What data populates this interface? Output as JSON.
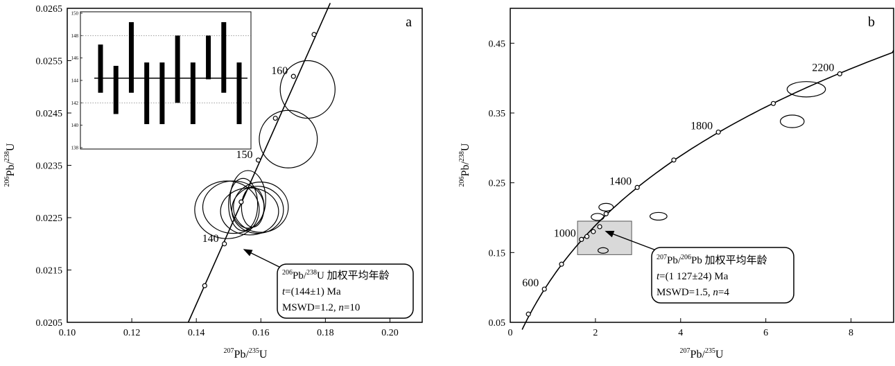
{
  "chart_data": [
    {
      "type": "scatter",
      "panel_label": "a",
      "xlabel_parts": [
        "207",
        "Pb/",
        "235",
        "U"
      ],
      "ylabel_parts": [
        "206",
        "Pb/",
        "238",
        "U"
      ],
      "xlim": [
        0.1,
        0.21
      ],
      "ylim": [
        0.0205,
        0.0265
      ],
      "xticks": [
        "0.10",
        "0.12",
        "0.14",
        "0.16",
        "0.18",
        "0.20"
      ],
      "xtick_values": [
        0.1,
        0.12,
        0.14,
        0.16,
        0.18,
        0.2
      ],
      "yticks": [
        "0.0205",
        "0.0215",
        "0.0225",
        "0.0235",
        "0.0245",
        "0.0255",
        "0.0265"
      ],
      "ytick_values": [
        0.0205,
        0.0215,
        0.0225,
        0.0235,
        0.0245,
        0.0255,
        0.0265
      ],
      "concordia_ticks": [
        {
          "x": 0.1426,
          "y": 0.0212
        },
        {
          "x": 0.1487,
          "y": 0.022,
          "label": "140"
        },
        {
          "x": 0.1539,
          "y": 0.0228
        },
        {
          "x": 0.1592,
          "y": 0.0236,
          "label": "150"
        },
        {
          "x": 0.1645,
          "y": 0.0244
        },
        {
          "x": 0.1701,
          "y": 0.0252,
          "label": "160"
        },
        {
          "x": 0.1765,
          "y": 0.026
        }
      ],
      "concordia_line": [
        [
          0.1375,
          0.0205
        ],
        [
          0.1815,
          0.0266
        ]
      ],
      "ellipses": [
        {
          "cx": 0.1495,
          "cy": 0.02265,
          "rx": 0.01,
          "ry": 0.00055,
          "angle": 0
        },
        {
          "cx": 0.1515,
          "cy": 0.0227,
          "rx": 0.0095,
          "ry": 0.0005,
          "angle": 0
        },
        {
          "cx": 0.1565,
          "cy": 0.02262,
          "rx": 0.009,
          "ry": 0.00045,
          "angle": 0
        },
        {
          "cx": 0.159,
          "cy": 0.02265,
          "rx": 0.008,
          "ry": 0.00045,
          "angle": 0
        },
        {
          "cx": 0.16,
          "cy": 0.0227,
          "rx": 0.0085,
          "ry": 0.00048,
          "angle": 0
        },
        {
          "cx": 0.156,
          "cy": 0.02285,
          "rx": 0.0055,
          "ry": 0.00055,
          "angle": 0
        },
        {
          "cx": 0.1545,
          "cy": 0.02275,
          "rx": 0.0045,
          "ry": 0.0005,
          "angle": 0
        },
        {
          "cx": 0.1575,
          "cy": 0.0227,
          "rx": 0.0035,
          "ry": 0.00038,
          "angle": 0
        },
        {
          "cx": 0.1685,
          "cy": 0.024,
          "rx": 0.009,
          "ry": 0.00055,
          "angle": 0
        },
        {
          "cx": 0.1745,
          "cy": 0.02495,
          "rx": 0.0085,
          "ry": 0.00055,
          "angle": 0
        }
      ],
      "arrow_target": {
        "x": 0.1545,
        "y": 0.0219
      },
      "inset": {
        "ylim": [
          138,
          150
        ],
        "yticks": [
          "138",
          "140",
          "142",
          "144",
          "146",
          "148",
          "150"
        ],
        "ytick_values": [
          138,
          140,
          142,
          144,
          146,
          148,
          150
        ],
        "dashed_lines": [
          142,
          148
        ],
        "mean": 144.2,
        "bars": [
          {
            "low": 142.9,
            "high": 147.2
          },
          {
            "low": 141.0,
            "high": 145.3
          },
          {
            "low": 142.9,
            "high": 149.2
          },
          {
            "low": 140.1,
            "high": 145.6
          },
          {
            "low": 140.1,
            "high": 145.6
          },
          {
            "low": 142.0,
            "high": 148.0
          },
          {
            "low": 140.1,
            "high": 145.6
          },
          {
            "low": 144.1,
            "high": 148.0
          },
          {
            "low": 142.9,
            "high": 149.2
          },
          {
            "low": 140.1,
            "high": 145.6
          }
        ]
      },
      "annotation": {
        "ratio_parts": [
          "206",
          "Pb/",
          "238",
          "U 加权平均年龄"
        ],
        "age_prefix": "t",
        "age_value": "=(144±1) Ma",
        "mswd_prefix": "MSWD=1.2, ",
        "n_symbol": "n",
        "n_value": "=10"
      }
    },
    {
      "type": "scatter",
      "panel_label": "b",
      "xlabel_parts": [
        "207",
        "Pb/",
        "235",
        "U"
      ],
      "ylabel_parts": [
        "206",
        "Pb/",
        "238",
        "U"
      ],
      "xlim": [
        0,
        9
      ],
      "ylim": [
        0.05,
        0.5
      ],
      "xticks": [
        "0",
        "2",
        "4",
        "6",
        "8"
      ],
      "xtick_values": [
        0,
        2,
        4,
        6,
        8
      ],
      "yticks": [
        "0.05",
        "0.15",
        "0.25",
        "0.35",
        "0.45"
      ],
      "ytick_values": [
        0.05,
        0.15,
        0.25,
        0.35,
        0.45
      ],
      "concordia_ticks": [
        {
          "x": 0.426,
          "y": 0.0618
        },
        {
          "x": 0.801,
          "y": 0.0976,
          "label": "600"
        },
        {
          "x": 1.204,
          "y": 0.1333
        },
        {
          "x": 1.672,
          "y": 0.1688,
          "label": "1000"
        },
        {
          "x": 2.25,
          "y": 0.2055
        },
        {
          "x": 2.981,
          "y": 0.2433,
          "label": "1400"
        },
        {
          "x": 3.84,
          "y": 0.2826
        },
        {
          "x": 4.885,
          "y": 0.3226,
          "label": "1800"
        },
        {
          "x": 6.176,
          "y": 0.3636
        },
        {
          "x": 7.736,
          "y": 0.4061,
          "label": "2200"
        }
      ],
      "concordia_extra_ticks": [
        {
          "x": 1.8,
          "y": 0.173
        },
        {
          "x": 1.95,
          "y": 0.18
        },
        {
          "x": 2.1,
          "y": 0.187
        }
      ],
      "ellipses": [
        {
          "cx": 2.25,
          "cy": 0.215,
          "rx": 0.17,
          "ry": 0.0055,
          "angle": 0
        },
        {
          "cx": 2.05,
          "cy": 0.201,
          "rx": 0.15,
          "ry": 0.005,
          "angle": 0
        },
        {
          "cx": 2.18,
          "cy": 0.153,
          "rx": 0.12,
          "ry": 0.004,
          "angle": 0
        },
        {
          "cx": 3.48,
          "cy": 0.202,
          "rx": 0.2,
          "ry": 0.0055,
          "angle": 0
        },
        {
          "cx": 6.62,
          "cy": 0.338,
          "rx": 0.28,
          "ry": 0.009,
          "angle": 0
        },
        {
          "cx": 6.95,
          "cy": 0.384,
          "rx": 0.45,
          "ry": 0.011,
          "angle": 0
        }
      ],
      "shaded_box": {
        "x0": 1.58,
        "x1": 2.85,
        "y0": 0.147,
        "y1": 0.195
      },
      "arrow_target": {
        "x": 2.22,
        "y": 0.181
      },
      "annotation": {
        "ratio_parts": [
          "207",
          "Pb/",
          "206",
          "Pb 加权平均年龄"
        ],
        "age_prefix": "t",
        "age_value": "=(1 127±24) Ma",
        "mswd_prefix": "MSWD=1.5, ",
        "n_symbol": "n",
        "n_value": "=4"
      }
    }
  ]
}
